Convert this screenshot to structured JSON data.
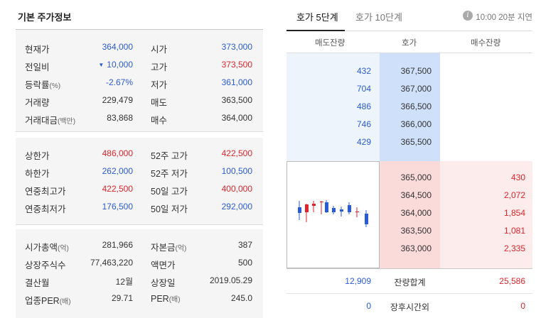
{
  "basic": {
    "title": "기본 주가정보",
    "section1": [
      {
        "l1": "현재가",
        "v1": "364,000",
        "c1": "blue",
        "l2": "시가",
        "v2": "373,000",
        "c2": "blue"
      },
      {
        "l1": "전일비",
        "v1": "10,000",
        "c1": "blue",
        "arrow": "▼",
        "l2": "고가",
        "v2": "373,500",
        "c2": "red"
      },
      {
        "l1": "등락률",
        "l1s": "(%)",
        "v1": "-2.67%",
        "c1": "blue",
        "l2": "저가",
        "v2": "361,000",
        "c2": "blue"
      },
      {
        "l1": "거래량",
        "v1": "229,479",
        "c1": "",
        "l2": "매도",
        "v2": "363,500",
        "c2": ""
      },
      {
        "l1": "거래대금",
        "l1s": "(백만)",
        "v1": "83,868",
        "c1": "",
        "l2": "매수",
        "v2": "364,000",
        "c2": ""
      }
    ],
    "section2": [
      {
        "l1": "상한가",
        "v1": "486,000",
        "c1": "red",
        "l2": "52주 고가",
        "v2": "422,500",
        "c2": "red"
      },
      {
        "l1": "하한가",
        "v1": "262,000",
        "c1": "blue",
        "l2": "52주 저가",
        "v2": "100,500",
        "c2": "blue"
      },
      {
        "l1": "연중최고가",
        "v1": "422,500",
        "c1": "red",
        "l2": "50일 고가",
        "v2": "400,000",
        "c2": "red"
      },
      {
        "l1": "연중최저가",
        "v1": "176,500",
        "c1": "blue",
        "l2": "50일 저가",
        "v2": "292,000",
        "c2": "blue"
      }
    ],
    "section3": [
      {
        "l1": "시가총액",
        "l1s": "(억)",
        "v1": "281,966",
        "c1": "",
        "l2": "자본금",
        "l2s": "(억)",
        "v2": "387",
        "c2": ""
      },
      {
        "l1": "상장주식수",
        "v1": "77,463,220",
        "c1": "",
        "l2": "액면가",
        "v2": "500",
        "c2": ""
      },
      {
        "l1": "결산월",
        "v1": "12월",
        "c1": "",
        "l2": "상장일",
        "v2": "2019.05.29",
        "c2": ""
      },
      {
        "l1": "업종PER",
        "l1s": "(배)",
        "v1": "29.71",
        "c1": "",
        "l2": "PER",
        "l2s": "(배)",
        "v2": "245.0",
        "c2": ""
      }
    ]
  },
  "orderbook": {
    "tabs": [
      "호가 5단계",
      "호가 10단계"
    ],
    "info_icon_glyph": "i",
    "delay_text": "10:00 20분 지연",
    "headers": [
      "매도잔량",
      "호가",
      "매수잔량"
    ],
    "asks": [
      {
        "qty": "432",
        "price": "367,500"
      },
      {
        "qty": "704",
        "price": "367,000"
      },
      {
        "qty": "486",
        "price": "366,500"
      },
      {
        "qty": "746",
        "price": "366,000"
      },
      {
        "qty": "429",
        "price": "365,500"
      }
    ],
    "bids": [
      {
        "price": "365,000",
        "qty": "430"
      },
      {
        "price": "364,500",
        "qty": "2,072"
      },
      {
        "price": "364,000",
        "qty": "1,854"
      },
      {
        "price": "363,500",
        "qty": "1,081"
      },
      {
        "price": "363,000",
        "qty": "2,335"
      }
    ],
    "total": {
      "ask": "12,909",
      "label": "잔량합계",
      "bid": "25,586"
    },
    "afterhours": {
      "ask": "0",
      "label": "장후시간외",
      "bid": "0"
    }
  },
  "colors": {
    "up": "#e0242b",
    "down": "#2a5bd7"
  }
}
